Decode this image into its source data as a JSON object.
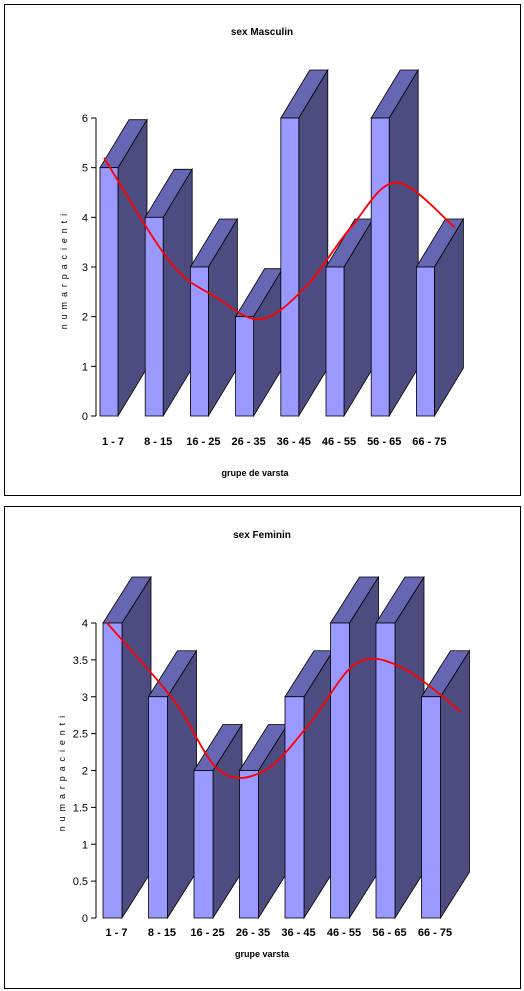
{
  "chart_data": [
    {
      "type": "bar",
      "title": "sex Masculin",
      "xlabel": "grupe de varsta",
      "ylabel": "n u m a r  p a c i e n t i",
      "categories": [
        "1 - 7",
        "8 - 15",
        "16 - 25",
        "26 - 35",
        "36 - 45",
        "46 - 55",
        "56 - 65",
        "66 - 75"
      ],
      "series": [
        {
          "values": [
            5,
            4,
            3,
            2,
            6,
            3,
            6,
            3
          ]
        }
      ],
      "trendline": {
        "type": "polynomial",
        "approx_values": [
          5.2,
          3.1,
          2.4,
          1.95,
          2.6,
          3.8,
          4.7,
          3.8
        ]
      },
      "ylim": [
        0,
        6
      ],
      "yticks": [
        "0",
        "1",
        "2",
        "3",
        "4",
        "5",
        "6"
      ],
      "grid": false,
      "three_d": true,
      "colors": {
        "bar_front": "#9999ff",
        "bar_side": "#4c4c80",
        "bar_top": "#6666b3",
        "trend": "#ff0000"
      }
    },
    {
      "type": "bar",
      "title": "sex Feminin",
      "xlabel": "grupe varsta",
      "ylabel": "n u m a r  p a c i e n t i",
      "categories": [
        "1 - 7",
        "8 - 15",
        "16 - 25",
        "26 - 35",
        "36 - 45",
        "46 - 55",
        "56 - 65",
        "66 - 75"
      ],
      "series": [
        {
          "values": [
            4,
            3,
            2,
            2,
            3,
            4,
            4,
            3
          ]
        }
      ],
      "trendline": {
        "type": "polynomial",
        "approx_values": [
          4.0,
          2.95,
          2.0,
          2.0,
          2.65,
          3.45,
          3.4,
          2.8
        ]
      },
      "ylim": [
        0,
        4
      ],
      "yticks": [
        "0",
        "0.5",
        "1",
        "1.5",
        "2",
        "2.5",
        "3",
        "3.5",
        "4"
      ],
      "grid": false,
      "three_d": true,
      "colors": {
        "bar_front": "#9999ff",
        "bar_side": "#4c4c80",
        "bar_top": "#6666b3",
        "trend": "#ff0000"
      }
    }
  ]
}
